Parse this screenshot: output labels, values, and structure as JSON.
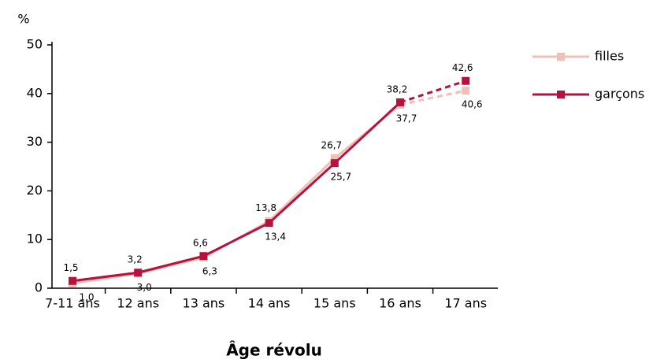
{
  "chart_data": {
    "type": "line",
    "y_label": "%",
    "x_label": "Âge révolu",
    "categories": [
      "7-11 ans",
      "12 ans",
      "13 ans",
      "14 ans",
      "15 ans",
      "16 ans",
      "17 ans"
    ],
    "series": [
      {
        "name": "filles",
        "color": "#f0bfb6",
        "values": [
          1.0,
          3.0,
          6.3,
          13.8,
          26.7,
          37.7,
          40.6
        ],
        "value_labels": [
          "1,0",
          "3,0",
          "6,3",
          "13,8",
          "26,7",
          "37,7",
          "40,6"
        ]
      },
      {
        "name": "garçons",
        "color": "#b5123e",
        "values": [
          1.5,
          3.2,
          6.6,
          13.4,
          25.7,
          38.2,
          42.6
        ],
        "value_labels": [
          "1,5",
          "3,2",
          "6,6",
          "13,4",
          "25,7",
          "38,2",
          "42,6"
        ]
      }
    ],
    "dashed_from_index": 5,
    "ylim": [
      0,
      50
    ],
    "yticks": [
      0,
      10,
      20,
      30,
      40,
      50
    ],
    "legend": "right"
  }
}
